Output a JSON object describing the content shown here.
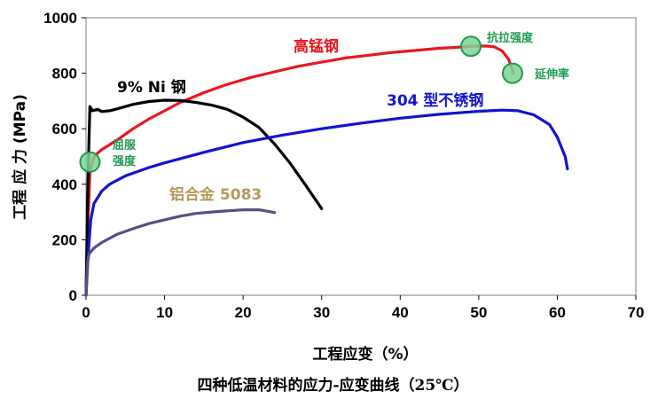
{
  "chart_data": {
    "type": "line",
    "title": "四种低温材料的应力-应变曲线（25℃）",
    "xlabel": "工程应变（%）",
    "ylabel": "工程 应 力 (MPa)",
    "xlim": [
      0,
      70
    ],
    "ylim": [
      0,
      1000
    ],
    "xticks": [
      "0",
      "10",
      "20",
      "30",
      "40",
      "50",
      "60",
      "70"
    ],
    "yticks": [
      "0",
      "200",
      "400",
      "600",
      "800",
      "1000"
    ],
    "grid": false,
    "series": [
      {
        "name": "高锰钢",
        "color": "#e8171f",
        "points": [
          [
            0,
            0
          ],
          [
            0.3,
            300
          ],
          [
            0.5,
            440
          ],
          [
            1,
            500
          ],
          [
            2,
            525
          ],
          [
            4,
            560
          ],
          [
            6,
            600
          ],
          [
            8,
            635
          ],
          [
            10,
            665
          ],
          [
            12,
            695
          ],
          [
            15,
            730
          ],
          [
            18,
            760
          ],
          [
            21,
            785
          ],
          [
            24,
            805
          ],
          [
            27,
            825
          ],
          [
            30,
            840
          ],
          [
            33,
            855
          ],
          [
            36,
            865
          ],
          [
            39,
            875
          ],
          [
            42,
            882
          ],
          [
            45,
            890
          ],
          [
            47,
            893
          ],
          [
            49,
            897
          ],
          [
            51,
            898
          ],
          [
            52,
            895
          ],
          [
            53,
            880
          ],
          [
            53.8,
            850
          ],
          [
            54.2,
            820
          ],
          [
            54.4,
            800
          ]
        ]
      },
      {
        "name": "9% Ni 钢",
        "color": "#000000",
        "points": [
          [
            0,
            0
          ],
          [
            0.2,
            350
          ],
          [
            0.4,
            580
          ],
          [
            0.5,
            680
          ],
          [
            0.8,
            665
          ],
          [
            1.5,
            670
          ],
          [
            2,
            662
          ],
          [
            3,
            665
          ],
          [
            4,
            672
          ],
          [
            6,
            688
          ],
          [
            8,
            698
          ],
          [
            10,
            703
          ],
          [
            12,
            702
          ],
          [
            14,
            695
          ],
          [
            16,
            685
          ],
          [
            18,
            670
          ],
          [
            20,
            642
          ],
          [
            22,
            605
          ],
          [
            24,
            545
          ],
          [
            26,
            475
          ],
          [
            28,
            395
          ],
          [
            30,
            312
          ]
        ]
      },
      {
        "name": "304 型不锈钢",
        "color": "#1313d0",
        "points": [
          [
            0,
            0
          ],
          [
            0.3,
            160
          ],
          [
            0.6,
            270
          ],
          [
            1,
            330
          ],
          [
            2,
            375
          ],
          [
            3,
            400
          ],
          [
            5,
            430
          ],
          [
            8,
            460
          ],
          [
            10,
            477
          ],
          [
            15,
            515
          ],
          [
            20,
            550
          ],
          [
            25,
            577
          ],
          [
            30,
            600
          ],
          [
            35,
            620
          ],
          [
            40,
            638
          ],
          [
            45,
            652
          ],
          [
            50,
            663
          ],
          [
            53,
            667
          ],
          [
            55,
            665
          ],
          [
            57,
            650
          ],
          [
            59,
            615
          ],
          [
            60,
            570
          ],
          [
            61,
            500
          ],
          [
            61.3,
            455
          ]
        ]
      },
      {
        "name": "铝合金 5083",
        "color": "#5a4e84",
        "points": [
          [
            0,
            0
          ],
          [
            0.2,
            120
          ],
          [
            0.4,
            150
          ],
          [
            1,
            170
          ],
          [
            2,
            190
          ],
          [
            4,
            220
          ],
          [
            6,
            240
          ],
          [
            8,
            258
          ],
          [
            10,
            272
          ],
          [
            12,
            285
          ],
          [
            14,
            295
          ],
          [
            16,
            300
          ],
          [
            18,
            304
          ],
          [
            20,
            308
          ],
          [
            22,
            308
          ],
          [
            24,
            298
          ]
        ]
      }
    ],
    "annotations": {
      "yield": "屈服强度",
      "yield_line1": "屈服",
      "yield_line2": "强度",
      "tensile": "抗拉强度",
      "elongation": "延伸率"
    },
    "markers": [
      {
        "label": "屈服强度",
        "x": 0.5,
        "y": 480
      },
      {
        "label": "抗拉强度",
        "x": 49,
        "y": 897
      },
      {
        "label": "延伸率",
        "x": 54.3,
        "y": 800
      }
    ],
    "marker_color": "#7ed497",
    "marker_stroke": "#1f9950"
  }
}
